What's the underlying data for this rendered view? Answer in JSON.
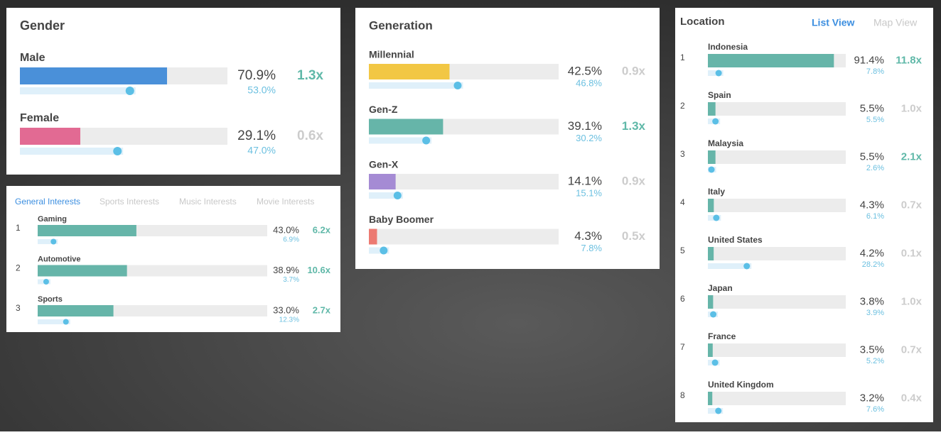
{
  "gender": {
    "title": "Gender",
    "rows": [
      {
        "label": "Male",
        "share": 70.9,
        "share_label": "70.9%",
        "baseline": 53.0,
        "baseline_label": "53.0%",
        "index": "1.3x",
        "highlight": true,
        "color": "#4a90d9"
      },
      {
        "label": "Female",
        "share": 29.1,
        "share_label": "29.1%",
        "baseline": 47.0,
        "baseline_label": "47.0%",
        "index": "0.6x",
        "highlight": false,
        "color": "#e26a93"
      }
    ]
  },
  "generation": {
    "title": "Generation",
    "rows": [
      {
        "label": "Millennial",
        "share": 42.5,
        "share_label": "42.5%",
        "baseline": 46.8,
        "baseline_label": "46.8%",
        "index": "0.9x",
        "highlight": false,
        "color": "#f2c744"
      },
      {
        "label": "Gen-Z",
        "share": 39.1,
        "share_label": "39.1%",
        "baseline": 30.2,
        "baseline_label": "30.2%",
        "index": "1.3x",
        "highlight": true,
        "color": "#66b5a9"
      },
      {
        "label": "Gen-X",
        "share": 14.1,
        "share_label": "14.1%",
        "baseline": 15.1,
        "baseline_label": "15.1%",
        "index": "0.9x",
        "highlight": false,
        "color": "#a58bd4"
      },
      {
        "label": "Baby Boomer",
        "share": 4.3,
        "share_label": "4.3%",
        "baseline": 7.8,
        "baseline_label": "7.8%",
        "index": "0.5x",
        "highlight": false,
        "color": "#ec7a72"
      }
    ]
  },
  "interests": {
    "tabs": [
      "General Interests",
      "Sports Interests",
      "Music Interests",
      "Movie Interests"
    ],
    "active_tab": 0,
    "color": "#66b5a9",
    "rows": [
      {
        "rank": 1,
        "label": "Gaming",
        "share": 43.0,
        "share_label": "43.0%",
        "baseline": 6.9,
        "baseline_label": "6.9%",
        "index": "6.2x",
        "highlight": true
      },
      {
        "rank": 2,
        "label": "Automotive",
        "share": 38.9,
        "share_label": "38.9%",
        "baseline": 3.7,
        "baseline_label": "3.7%",
        "index": "10.6x",
        "highlight": true
      },
      {
        "rank": 3,
        "label": "Sports",
        "share": 33.0,
        "share_label": "33.0%",
        "baseline": 12.3,
        "baseline_label": "12.3%",
        "index": "2.7x",
        "highlight": true
      }
    ]
  },
  "location": {
    "title": "Location",
    "views": [
      "List View",
      "Map View"
    ],
    "active_view": 0,
    "color": "#66b5a9",
    "rows": [
      {
        "rank": 1,
        "label": "Indonesia",
        "share": 91.4,
        "share_label": "91.4%",
        "baseline": 7.8,
        "baseline_label": "7.8%",
        "index": "11.8x",
        "highlight": true
      },
      {
        "rank": 2,
        "label": "Spain",
        "share": 5.5,
        "share_label": "5.5%",
        "baseline": 5.5,
        "baseline_label": "5.5%",
        "index": "1.0x",
        "highlight": false
      },
      {
        "rank": 3,
        "label": "Malaysia",
        "share": 5.5,
        "share_label": "5.5%",
        "baseline": 2.6,
        "baseline_label": "2.6%",
        "index": "2.1x",
        "highlight": true
      },
      {
        "rank": 4,
        "label": "Italy",
        "share": 4.3,
        "share_label": "4.3%",
        "baseline": 6.1,
        "baseline_label": "6.1%",
        "index": "0.7x",
        "highlight": false
      },
      {
        "rank": 5,
        "label": "United States",
        "share": 4.2,
        "share_label": "4.2%",
        "baseline": 28.2,
        "baseline_label": "28.2%",
        "index": "0.1x",
        "highlight": false
      },
      {
        "rank": 6,
        "label": "Japan",
        "share": 3.8,
        "share_label": "3.8%",
        "baseline": 3.9,
        "baseline_label": "3.9%",
        "index": "1.0x",
        "highlight": false
      },
      {
        "rank": 7,
        "label": "France",
        "share": 3.5,
        "share_label": "3.5%",
        "baseline": 5.2,
        "baseline_label": "5.2%",
        "index": "0.7x",
        "highlight": false
      },
      {
        "rank": 8,
        "label": "United Kingdom",
        "share": 3.2,
        "share_label": "3.2%",
        "baseline": 7.6,
        "baseline_label": "7.6%",
        "index": "0.4x",
        "highlight": false
      }
    ]
  }
}
